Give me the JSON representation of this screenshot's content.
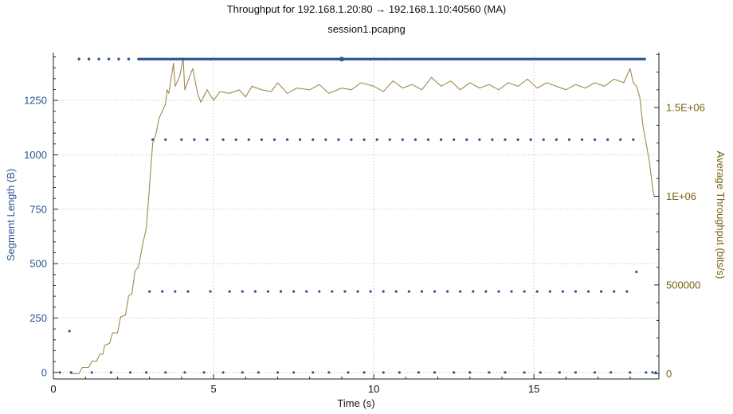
{
  "chart_data": {
    "type": "scatter",
    "title": "Throughput for 192.168.1.20:80 → 192.168.1.10:40560 (MA)",
    "subtitle": "session1.pcapng",
    "xlabel": "Time (s)",
    "ylabel_left": "Segment Length (B)",
    "ylabel_right": "Average Throughput (bits/s)",
    "xlim": [
      0,
      18.9
    ],
    "ylim_left": [
      -30,
      1470
    ],
    "ylim_right": [
      -30000,
      1810000
    ],
    "x_ticks": [
      0,
      5,
      10,
      15
    ],
    "x_tick_labels": [
      "0",
      "5",
      "10",
      "15"
    ],
    "y_left_ticks": [
      0,
      250,
      500,
      750,
      1000,
      1250
    ],
    "y_left_tick_labels": [
      "0",
      "250",
      "500",
      "750",
      "1000",
      "1250"
    ],
    "y_right_ticks": [
      0,
      500000,
      1000000,
      1500000
    ],
    "y_right_tick_labels": [
      "0",
      "500000",
      "1E+06",
      "1.5E+06"
    ],
    "grid": true,
    "colors": {
      "segments": "#2b5591",
      "throughput": "#a08850",
      "left_axis_text": "#2b5591",
      "right_axis_text": "#7a5f10"
    },
    "series": [
      {
        "axis": "left",
        "style": "dots",
        "points": [
          [
            0.5,
            190
          ],
          [
            18.2,
            462
          ],
          [
            3.1,
            1070
          ],
          [
            3.5,
            1070
          ],
          [
            4.0,
            1070
          ],
          [
            4.4,
            1070
          ],
          [
            4.8,
            1070
          ],
          [
            5.3,
            1070
          ],
          [
            5.7,
            1070
          ],
          [
            6.1,
            1070
          ],
          [
            6.5,
            1070
          ],
          [
            6.9,
            1070
          ],
          [
            7.3,
            1070
          ],
          [
            7.7,
            1070
          ],
          [
            8.1,
            1070
          ],
          [
            8.5,
            1070
          ],
          [
            8.9,
            1070
          ],
          [
            9.3,
            1070
          ],
          [
            9.7,
            1070
          ],
          [
            10.1,
            1070
          ],
          [
            10.5,
            1070
          ],
          [
            10.9,
            1070
          ],
          [
            11.3,
            1070
          ],
          [
            11.7,
            1070
          ],
          [
            12.1,
            1070
          ],
          [
            12.5,
            1070
          ],
          [
            12.9,
            1070
          ],
          [
            13.3,
            1070
          ],
          [
            13.7,
            1070
          ],
          [
            14.1,
            1070
          ],
          [
            14.5,
            1070
          ],
          [
            14.9,
            1070
          ],
          [
            15.3,
            1070
          ],
          [
            15.7,
            1070
          ],
          [
            16.1,
            1070
          ],
          [
            16.5,
            1070
          ],
          [
            16.9,
            1070
          ],
          [
            17.3,
            1070
          ],
          [
            17.7,
            1070
          ],
          [
            18.1,
            1070
          ],
          [
            3.0,
            372
          ],
          [
            3.4,
            372
          ],
          [
            3.8,
            372
          ],
          [
            4.2,
            372
          ],
          [
            4.9,
            372
          ],
          [
            5.5,
            372
          ],
          [
            5.9,
            372
          ],
          [
            6.3,
            372
          ],
          [
            6.7,
            372
          ],
          [
            7.1,
            372
          ],
          [
            7.5,
            372
          ],
          [
            7.9,
            372
          ],
          [
            8.3,
            372
          ],
          [
            8.7,
            372
          ],
          [
            9.1,
            372
          ],
          [
            9.5,
            372
          ],
          [
            9.9,
            372
          ],
          [
            10.3,
            372
          ],
          [
            10.7,
            372
          ],
          [
            11.1,
            372
          ],
          [
            11.5,
            372
          ],
          [
            11.9,
            372
          ],
          [
            12.3,
            372
          ],
          [
            12.7,
            372
          ],
          [
            13.1,
            372
          ],
          [
            13.5,
            372
          ],
          [
            13.9,
            372
          ],
          [
            14.3,
            372
          ],
          [
            14.7,
            372
          ],
          [
            15.1,
            372
          ],
          [
            15.5,
            372
          ],
          [
            15.9,
            372
          ],
          [
            16.3,
            372
          ],
          [
            16.7,
            372
          ],
          [
            17.1,
            372
          ],
          [
            17.5,
            372
          ],
          [
            17.9,
            372
          ],
          [
            0.2,
            0
          ],
          [
            0.55,
            0
          ],
          [
            1.2,
            0
          ],
          [
            1.8,
            0
          ],
          [
            2.4,
            0
          ],
          [
            2.9,
            0
          ],
          [
            3.5,
            0
          ],
          [
            4.1,
            0
          ],
          [
            4.7,
            0
          ],
          [
            5.3,
            0
          ],
          [
            5.9,
            0
          ],
          [
            6.4,
            0
          ],
          [
            7.0,
            0
          ],
          [
            7.5,
            0
          ],
          [
            8.1,
            0
          ],
          [
            8.6,
            0
          ],
          [
            9.2,
            0
          ],
          [
            9.7,
            0
          ],
          [
            10.3,
            0
          ],
          [
            10.8,
            0
          ],
          [
            11.4,
            0
          ],
          [
            11.9,
            0
          ],
          [
            12.5,
            0
          ],
          [
            13.0,
            0
          ],
          [
            13.6,
            0
          ],
          [
            14.1,
            0
          ],
          [
            14.7,
            0
          ],
          [
            15.2,
            0
          ],
          [
            15.8,
            0
          ],
          [
            16.3,
            0
          ],
          [
            16.9,
            0
          ],
          [
            17.4,
            0
          ],
          [
            18.0,
            0
          ],
          [
            18.5,
            0
          ],
          [
            18.7,
            0
          ],
          [
            18.8,
            0
          ],
          [
            9.0,
            1440
          ]
        ]
      },
      {
        "axis": "left",
        "style": "dots",
        "x_from": 0.8,
        "x_to": 18.5,
        "y": 1440,
        "spacing_sparse": 0.31,
        "dense_start": 2.5,
        "spacing_dense": 0.065
      },
      {
        "axis": "right",
        "style": "line",
        "points": [
          [
            0.55,
            0
          ],
          [
            0.8,
            0
          ],
          [
            0.9,
            35000
          ],
          [
            1.1,
            35000
          ],
          [
            1.2,
            70000
          ],
          [
            1.35,
            70000
          ],
          [
            1.45,
            110000
          ],
          [
            1.55,
            110000
          ],
          [
            1.6,
            160000
          ],
          [
            1.75,
            170000
          ],
          [
            1.85,
            230000
          ],
          [
            2.0,
            230000
          ],
          [
            2.1,
            320000
          ],
          [
            2.25,
            330000
          ],
          [
            2.35,
            440000
          ],
          [
            2.45,
            450000
          ],
          [
            2.55,
            580000
          ],
          [
            2.65,
            600000
          ],
          [
            2.8,
            740000
          ],
          [
            2.9,
            820000
          ],
          [
            3.0,
            1050000
          ],
          [
            3.05,
            1180000
          ],
          [
            3.1,
            1300000
          ],
          [
            3.2,
            1350000
          ],
          [
            3.3,
            1440000
          ],
          [
            3.4,
            1480000
          ],
          [
            3.5,
            1520000
          ],
          [
            3.55,
            1600000
          ],
          [
            3.6,
            1580000
          ],
          [
            3.75,
            1750000
          ],
          [
            3.8,
            1620000
          ],
          [
            3.95,
            1680000
          ],
          [
            4.05,
            1780000
          ],
          [
            4.1,
            1600000
          ],
          [
            4.2,
            1650000
          ],
          [
            4.35,
            1720000
          ],
          [
            4.5,
            1580000
          ],
          [
            4.6,
            1530000
          ],
          [
            4.8,
            1600000
          ],
          [
            5.0,
            1540000
          ],
          [
            5.2,
            1590000
          ],
          [
            5.5,
            1580000
          ],
          [
            5.8,
            1600000
          ],
          [
            6.0,
            1560000
          ],
          [
            6.2,
            1620000
          ],
          [
            6.5,
            1600000
          ],
          [
            6.8,
            1590000
          ],
          [
            7.0,
            1640000
          ],
          [
            7.3,
            1580000
          ],
          [
            7.6,
            1610000
          ],
          [
            8.0,
            1600000
          ],
          [
            8.3,
            1630000
          ],
          [
            8.6,
            1580000
          ],
          [
            9.0,
            1610000
          ],
          [
            9.3,
            1600000
          ],
          [
            9.6,
            1640000
          ],
          [
            10.0,
            1620000
          ],
          [
            10.3,
            1590000
          ],
          [
            10.6,
            1650000
          ],
          [
            10.9,
            1610000
          ],
          [
            11.2,
            1630000
          ],
          [
            11.5,
            1600000
          ],
          [
            11.8,
            1670000
          ],
          [
            12.1,
            1620000
          ],
          [
            12.4,
            1650000
          ],
          [
            12.7,
            1600000
          ],
          [
            13.0,
            1640000
          ],
          [
            13.3,
            1610000
          ],
          [
            13.6,
            1630000
          ],
          [
            13.9,
            1600000
          ],
          [
            14.2,
            1640000
          ],
          [
            14.5,
            1620000
          ],
          [
            14.8,
            1660000
          ],
          [
            15.1,
            1610000
          ],
          [
            15.4,
            1640000
          ],
          [
            15.7,
            1620000
          ],
          [
            16.0,
            1600000
          ],
          [
            16.3,
            1630000
          ],
          [
            16.6,
            1610000
          ],
          [
            16.9,
            1640000
          ],
          [
            17.2,
            1620000
          ],
          [
            17.5,
            1660000
          ],
          [
            17.8,
            1640000
          ],
          [
            18.0,
            1720000
          ],
          [
            18.1,
            1640000
          ],
          [
            18.2,
            1620000
          ],
          [
            18.3,
            1560000
          ],
          [
            18.4,
            1400000
          ],
          [
            18.5,
            1300000
          ],
          [
            18.6,
            1200000
          ],
          [
            18.7,
            1050000
          ],
          [
            18.75,
            1000000
          ]
        ]
      }
    ]
  }
}
